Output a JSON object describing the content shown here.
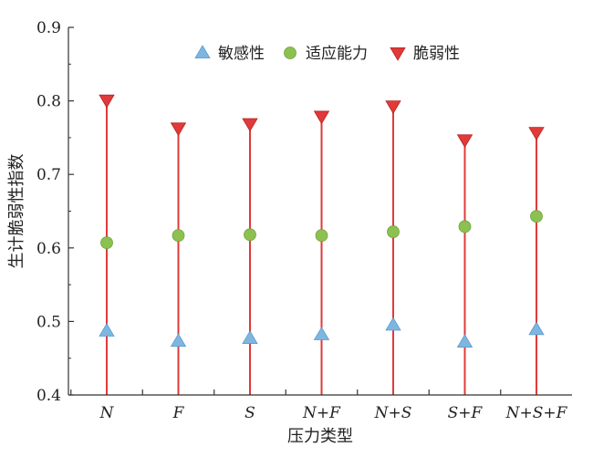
{
  "chart_data": {
    "type": "scatter",
    "xlabel": "压力类型",
    "ylabel": "生计脆弱性指数",
    "ylim": [
      0.4,
      0.9
    ],
    "yticks": [
      "0.4",
      "0.5",
      "0.6",
      "0.7",
      "0.8",
      "0.9"
    ],
    "categories": [
      "N",
      "F",
      "S",
      "N+F",
      "N+S",
      "S+F",
      "N+S+F"
    ],
    "legend_position": "top-center",
    "series": [
      {
        "name": "敏感性",
        "marker": "triangle-up",
        "color": "#7eb6e0",
        "values": [
          0.487,
          0.473,
          0.477,
          0.482,
          0.495,
          0.472,
          0.489
        ]
      },
      {
        "name": "适应能力",
        "marker": "circle",
        "color": "#8cc152",
        "values": [
          0.607,
          0.617,
          0.618,
          0.617,
          0.622,
          0.629,
          0.643
        ]
      },
      {
        "name": "脆弱性",
        "marker": "triangle-down",
        "color": "#e03a3a",
        "values": [
          0.801,
          0.763,
          0.769,
          0.779,
          0.793,
          0.747,
          0.757
        ]
      }
    ],
    "stem_color": "#e03a3a"
  }
}
